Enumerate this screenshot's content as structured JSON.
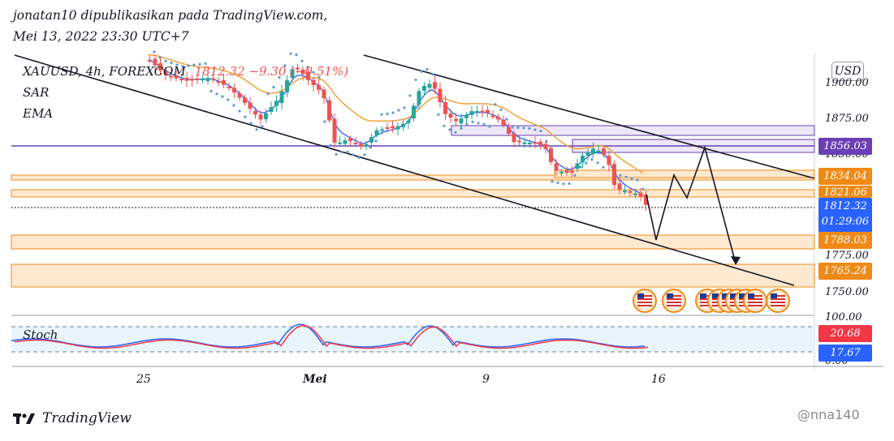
{
  "header": {
    "line1": "jonatan10 dipublikasikan pada TradingView.com,",
    "line2": "Mei 13, 2022 23:30 UTC+7"
  },
  "legend": {
    "symbol": "XAUUSD, 4h, FOREXCOM",
    "quote": "1812.32 −9.30 (−0.51%)",
    "sar": "SAR",
    "ema": "EMA",
    "stoch": "Stoch"
  },
  "currency_button": "USD",
  "price_axis": [
    "1900.00",
    "1875.00",
    "1850.00",
    "1775.00",
    "1750.00"
  ],
  "osc_axis": [
    "100.00",
    "0.00"
  ],
  "price_labels": [
    {
      "value": "1856.03",
      "color": "#6a3fb5"
    },
    {
      "value": "1834.04",
      "color": "#ef8a17"
    },
    {
      "value": "1821.06",
      "color": "#ef8a17"
    },
    {
      "value": "1788.03",
      "color": "#ef8a17"
    },
    {
      "value": "1765.24",
      "color": "#ef8a17"
    }
  ],
  "last_price": {
    "value": "1812.32",
    "countdown": "01:29:06",
    "color": "#2962ff"
  },
  "osc_labels": [
    {
      "value": "20.68",
      "color": "#f23645"
    },
    {
      "value": "17.67",
      "color": "#2962ff"
    }
  ],
  "x_axis_labels": [
    "25",
    "Mei",
    "9",
    "16"
  ],
  "brand": "TradingView",
  "watermark": "@nna140",
  "colors": {
    "up": "#26a69a",
    "down": "#ef5350",
    "ema": "#f2a33a",
    "sar": "#5b9bd5",
    "ma_fast": "#2962ff",
    "zone": "#ef8a17",
    "zone_purple": "#6a3fb5"
  },
  "chart_data": [
    {
      "type": "candlestick",
      "symbol": "XAUUSD",
      "timeframe": "4h",
      "ylim": [
        1740,
        1905
      ],
      "x_ticks": [
        "25",
        "Mei",
        "9",
        "16"
      ],
      "last": 1812.32,
      "horizontal_levels": [
        1856.03,
        1834.04,
        1821.06,
        1788.03,
        1765.24
      ],
      "series": [
        {
          "name": "SAR"
        },
        {
          "name": "EMA"
        }
      ]
    },
    {
      "type": "line",
      "indicator": "Stoch",
      "ylim": [
        0,
        100
      ],
      "last_values": [
        20.68,
        17.67
      ]
    }
  ]
}
